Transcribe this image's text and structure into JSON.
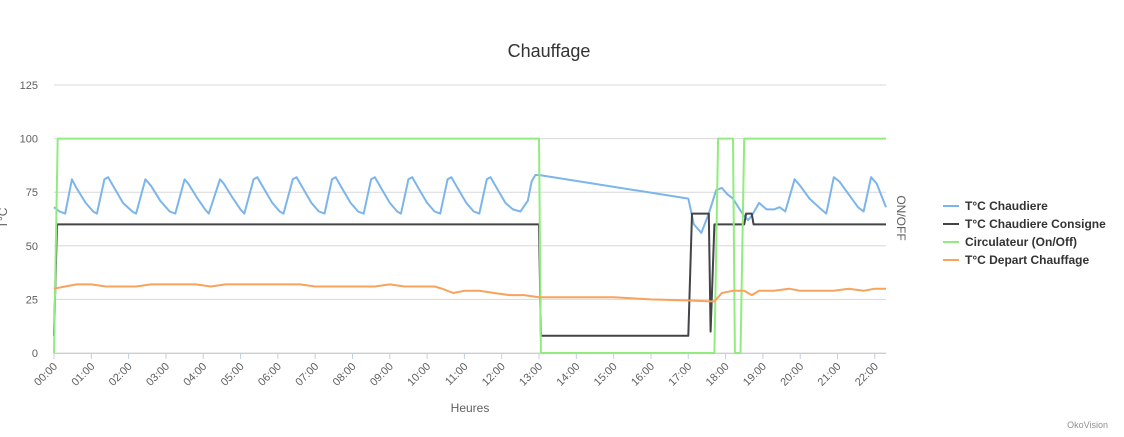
{
  "chart_data": {
    "type": "line",
    "title": "Chauffage",
    "xlabel": "Heures",
    "ylabel": "T°C",
    "y2label": "ON/OFF",
    "credits": "OkoVision",
    "ylim": [
      0,
      125
    ],
    "yticks": [
      "0",
      "25",
      "50",
      "75",
      "100",
      "125"
    ],
    "xlim": [
      0,
      22.3
    ],
    "xticks": [
      "00:00",
      "01:00",
      "02:00",
      "03:00",
      "04:00",
      "05:00",
      "06:00",
      "07:00",
      "08:00",
      "09:00",
      "10:00",
      "11:00",
      "12:00",
      "13:00",
      "14:00",
      "15:00",
      "16:00",
      "17:00",
      "18:00",
      "19:00",
      "20:00",
      "21:00",
      "22:00"
    ],
    "grid": true,
    "legend_position": "right",
    "series": [
      {
        "name": "T°C Chaudiere",
        "color": "#7cb5ec",
        "points": [
          [
            0,
            68
          ],
          [
            0.15,
            66
          ],
          [
            0.3,
            65
          ],
          [
            0.48,
            81
          ],
          [
            0.6,
            77
          ],
          [
            0.85,
            70
          ],
          [
            1.05,
            66
          ],
          [
            1.15,
            65
          ],
          [
            1.35,
            81
          ],
          [
            1.45,
            82
          ],
          [
            1.65,
            76
          ],
          [
            1.85,
            70
          ],
          [
            2.1,
            66
          ],
          [
            2.2,
            65
          ],
          [
            2.45,
            81
          ],
          [
            2.6,
            78
          ],
          [
            2.85,
            71
          ],
          [
            3.1,
            66
          ],
          [
            3.25,
            65
          ],
          [
            3.5,
            81
          ],
          [
            3.6,
            79
          ],
          [
            3.85,
            72
          ],
          [
            4.05,
            67
          ],
          [
            4.15,
            65
          ],
          [
            4.45,
            81
          ],
          [
            4.55,
            79
          ],
          [
            4.8,
            72
          ],
          [
            5.0,
            67
          ],
          [
            5.1,
            65
          ],
          [
            5.35,
            81
          ],
          [
            5.45,
            82
          ],
          [
            5.65,
            76
          ],
          [
            5.85,
            70
          ],
          [
            6.05,
            66
          ],
          [
            6.15,
            65
          ],
          [
            6.4,
            81
          ],
          [
            6.5,
            82
          ],
          [
            6.7,
            76
          ],
          [
            6.9,
            70
          ],
          [
            7.1,
            66
          ],
          [
            7.25,
            65
          ],
          [
            7.45,
            81
          ],
          [
            7.55,
            82
          ],
          [
            7.75,
            76
          ],
          [
            7.95,
            70
          ],
          [
            8.15,
            66
          ],
          [
            8.3,
            65
          ],
          [
            8.5,
            81
          ],
          [
            8.6,
            82
          ],
          [
            8.8,
            76
          ],
          [
            9.0,
            70
          ],
          [
            9.2,
            66
          ],
          [
            9.3,
            65
          ],
          [
            9.5,
            81
          ],
          [
            9.6,
            82
          ],
          [
            9.8,
            76
          ],
          [
            10.0,
            70
          ],
          [
            10.2,
            66
          ],
          [
            10.35,
            65
          ],
          [
            10.55,
            81
          ],
          [
            10.65,
            82
          ],
          [
            10.85,
            76
          ],
          [
            11.05,
            70
          ],
          [
            11.25,
            66
          ],
          [
            11.4,
            65
          ],
          [
            11.6,
            81
          ],
          [
            11.7,
            82
          ],
          [
            11.9,
            76
          ],
          [
            12.1,
            70
          ],
          [
            12.3,
            67
          ],
          [
            12.5,
            66
          ],
          [
            12.7,
            71
          ],
          [
            12.8,
            80
          ],
          [
            12.9,
            83
          ],
          [
            13.0,
            83
          ],
          [
            17.0,
            72
          ],
          [
            17.15,
            60
          ],
          [
            17.35,
            56
          ],
          [
            17.55,
            65
          ],
          [
            17.75,
            76
          ],
          [
            17.9,
            77
          ],
          [
            18.05,
            74
          ],
          [
            18.2,
            72
          ],
          [
            18.45,
            65
          ],
          [
            18.6,
            62
          ],
          [
            18.7,
            64
          ],
          [
            18.9,
            70
          ],
          [
            19.1,
            67
          ],
          [
            19.3,
            67
          ],
          [
            19.45,
            68
          ],
          [
            19.6,
            66
          ],
          [
            19.85,
            81
          ],
          [
            20.0,
            78
          ],
          [
            20.25,
            72
          ],
          [
            20.5,
            68
          ],
          [
            20.7,
            65
          ],
          [
            20.9,
            82
          ],
          [
            21.05,
            80
          ],
          [
            21.3,
            74
          ],
          [
            21.55,
            68
          ],
          [
            21.7,
            66
          ],
          [
            21.9,
            82
          ],
          [
            22.05,
            79
          ],
          [
            22.3,
            68
          ]
        ]
      },
      {
        "name": "T°C Chaudiere Consigne",
        "color": "#434348",
        "points": [
          [
            0,
            8
          ],
          [
            0.08,
            60
          ],
          [
            13.0,
            60
          ],
          [
            13.05,
            8
          ],
          [
            17.0,
            8
          ],
          [
            17.1,
            65
          ],
          [
            17.55,
            65
          ],
          [
            17.6,
            10
          ],
          [
            17.7,
            60
          ],
          [
            18.5,
            60
          ],
          [
            18.55,
            65
          ],
          [
            18.7,
            65
          ],
          [
            18.75,
            60
          ],
          [
            22.3,
            60
          ]
        ]
      },
      {
        "name": "Circulateur (On/Off)",
        "color": "#90ed7d",
        "points": [
          [
            0,
            0
          ],
          [
            0.1,
            100
          ],
          [
            13.0,
            100
          ],
          [
            13.05,
            0
          ],
          [
            17.7,
            0
          ],
          [
            17.8,
            100
          ],
          [
            18.2,
            100
          ],
          [
            18.25,
            0
          ],
          [
            18.4,
            0
          ],
          [
            18.5,
            100
          ],
          [
            22.3,
            100
          ]
        ]
      },
      {
        "name": "T°C Depart Chauffage",
        "color": "#f7a35c",
        "points": [
          [
            0,
            30
          ],
          [
            0.3,
            31
          ],
          [
            0.6,
            32
          ],
          [
            1.0,
            32
          ],
          [
            1.4,
            31
          ],
          [
            1.8,
            31
          ],
          [
            2.2,
            31
          ],
          [
            2.6,
            32
          ],
          [
            3.0,
            32
          ],
          [
            3.4,
            32
          ],
          [
            3.8,
            32
          ],
          [
            4.2,
            31
          ],
          [
            4.6,
            32
          ],
          [
            5.0,
            32
          ],
          [
            5.4,
            32
          ],
          [
            5.8,
            32
          ],
          [
            6.2,
            32
          ],
          [
            6.6,
            32
          ],
          [
            7.0,
            31
          ],
          [
            7.4,
            31
          ],
          [
            7.8,
            31
          ],
          [
            8.2,
            31
          ],
          [
            8.6,
            31
          ],
          [
            9.0,
            32
          ],
          [
            9.4,
            31
          ],
          [
            9.8,
            31
          ],
          [
            10.2,
            31
          ],
          [
            10.4,
            30
          ],
          [
            10.7,
            28
          ],
          [
            11.0,
            29
          ],
          [
            11.4,
            29
          ],
          [
            11.8,
            28
          ],
          [
            12.2,
            27
          ],
          [
            12.6,
            27
          ],
          [
            13.0,
            26
          ],
          [
            14.0,
            26
          ],
          [
            15.0,
            26
          ],
          [
            16.0,
            25
          ],
          [
            17.0,
            24.5
          ],
          [
            17.7,
            24
          ],
          [
            17.9,
            28
          ],
          [
            18.2,
            29
          ],
          [
            18.5,
            29
          ],
          [
            18.7,
            27
          ],
          [
            18.9,
            29
          ],
          [
            19.3,
            29
          ],
          [
            19.7,
            30
          ],
          [
            20.0,
            29
          ],
          [
            20.5,
            29
          ],
          [
            20.9,
            29
          ],
          [
            21.3,
            30
          ],
          [
            21.7,
            29
          ],
          [
            22.0,
            30
          ],
          [
            22.3,
            30
          ]
        ]
      }
    ]
  }
}
